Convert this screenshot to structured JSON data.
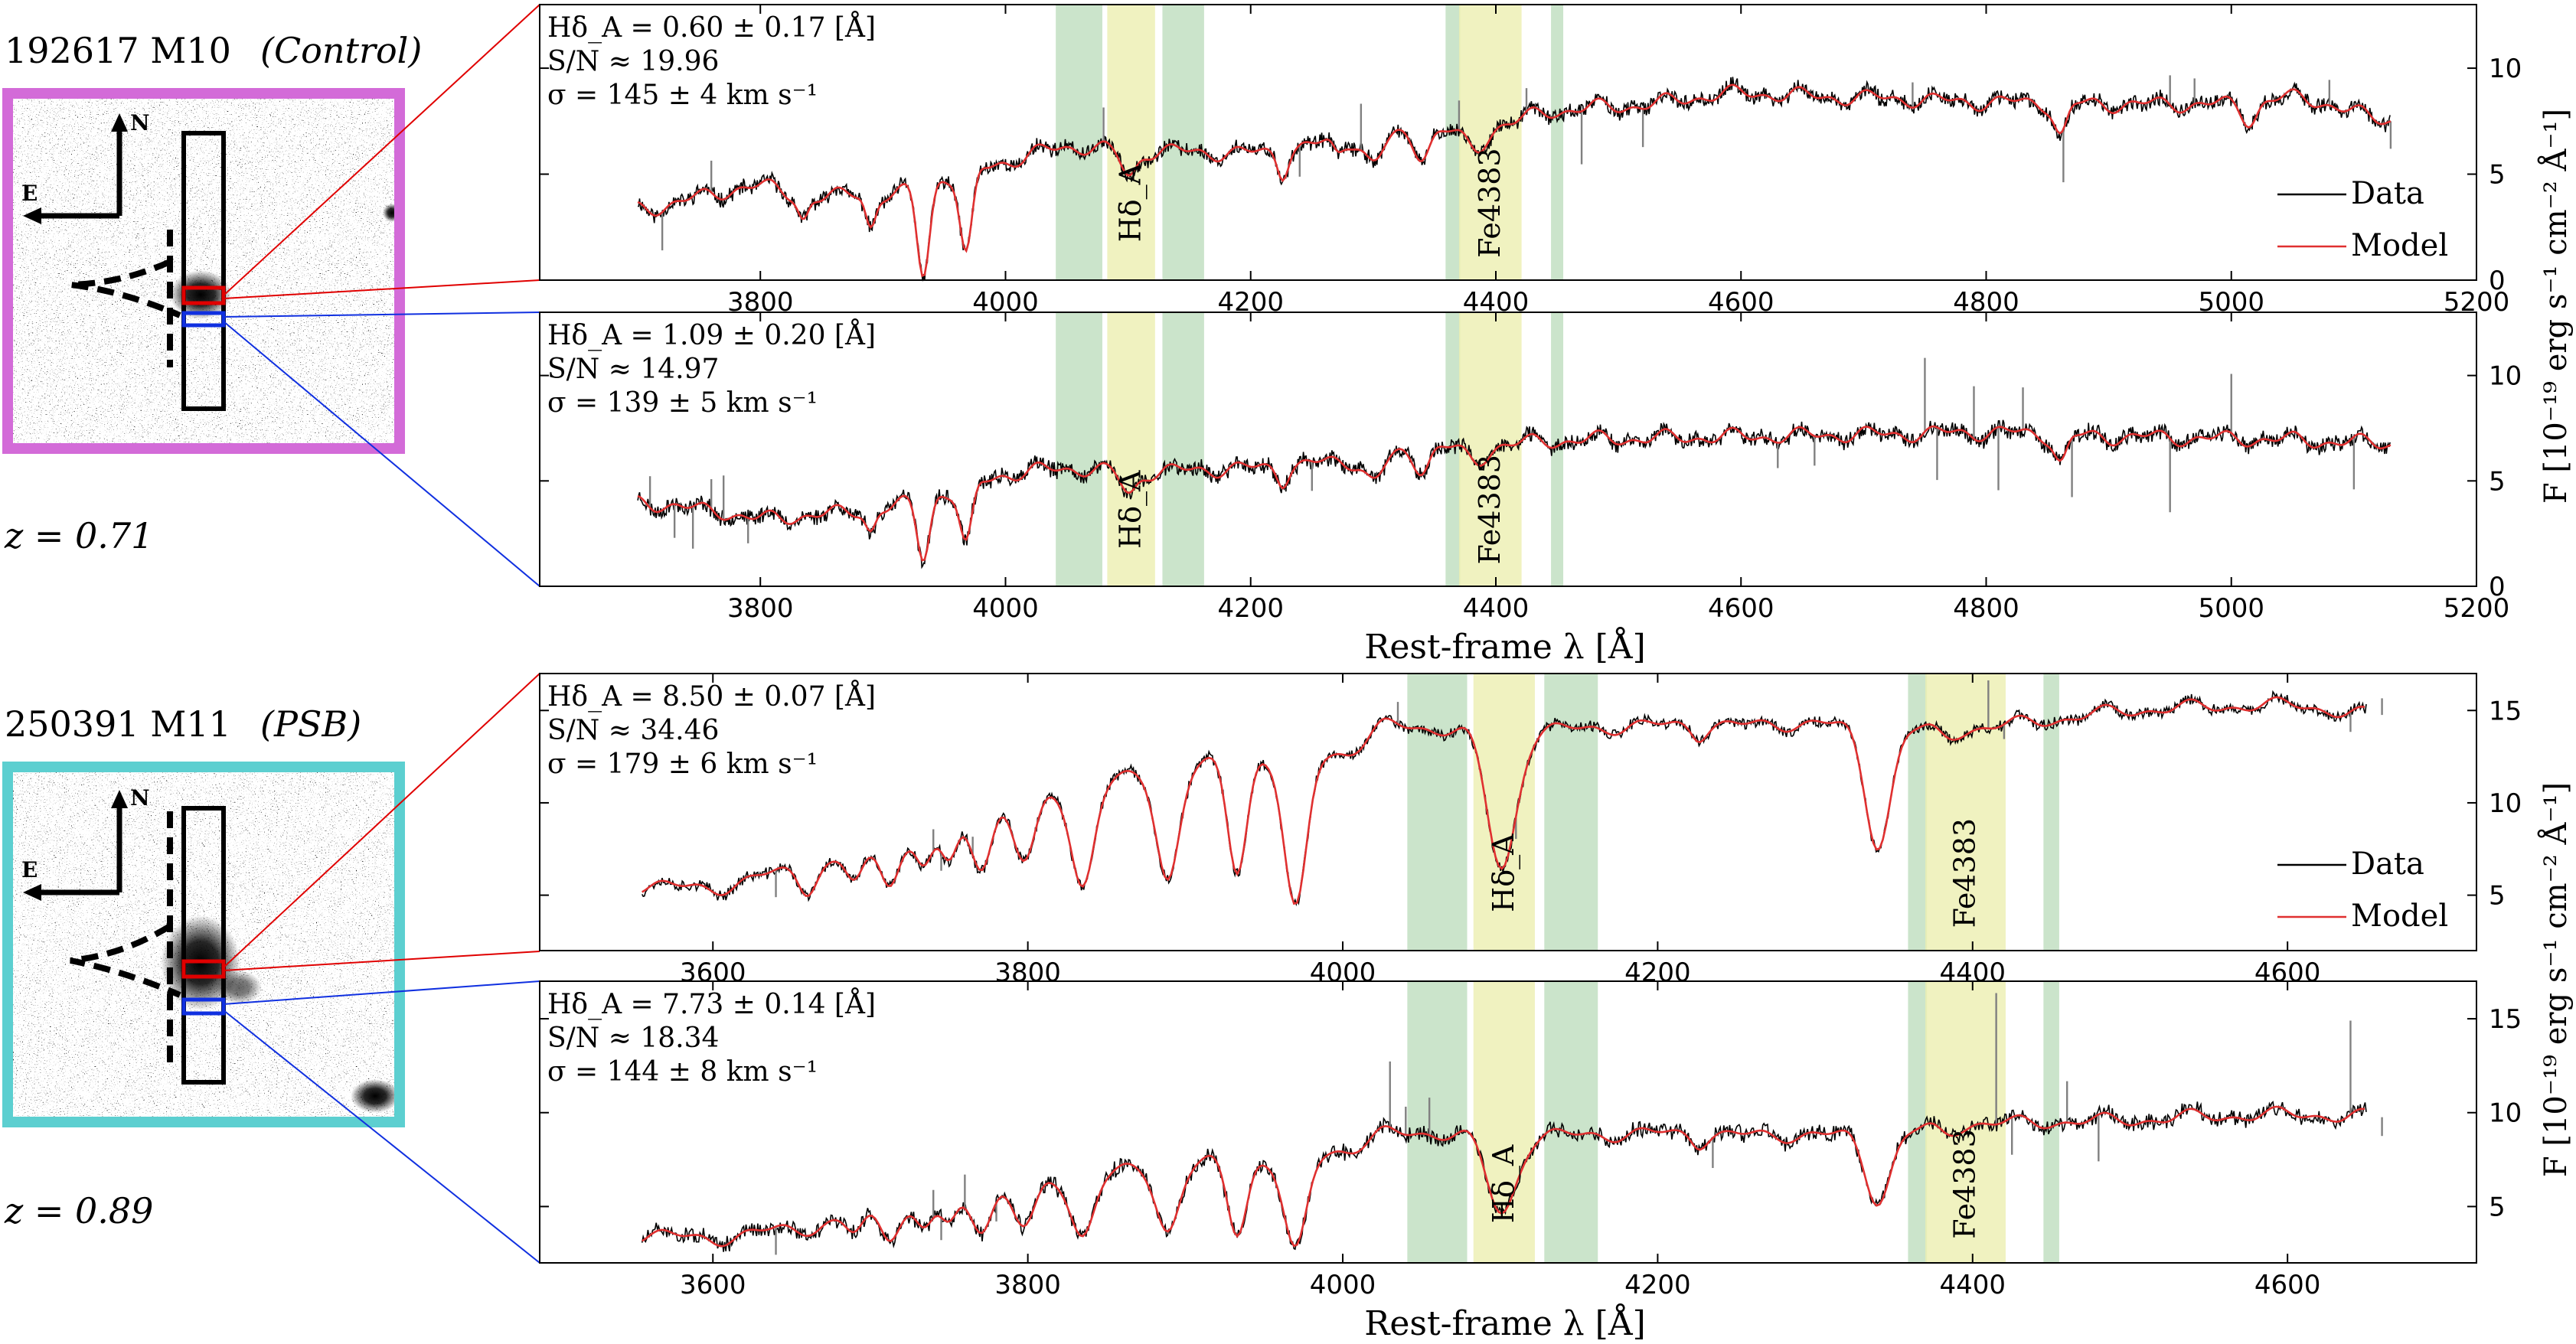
{
  "galaxies": [
    {
      "id": "192617 M10",
      "type_label": "(Control)",
      "redshift": "z = 0.71",
      "frame_color": "#d36bd8",
      "compass": {
        "north": "N",
        "east": "E"
      },
      "panels": [
        {
          "stats": [
            "Hδ_A = 0.60 ± 0.17 [Å]",
            "S/N ≈ 19.96",
            "σ = 145 ± 4 km s⁻¹"
          ],
          "box_color": "#e00000",
          "show_legend": true,
          "show_xlabel": false
        },
        {
          "stats": [
            "Hδ_A = 1.09 ± 0.20 [Å]",
            "S/N ≈ 14.97",
            "σ = 139 ± 5 km s⁻¹"
          ],
          "box_color": "#1030e0",
          "show_legend": false,
          "show_xlabel": true
        }
      ]
    },
    {
      "id": "250391 M11",
      "type_label": "(PSB)",
      "redshift": "z = 0.89",
      "frame_color": "#5ccfd0",
      "compass": {
        "north": "N",
        "east": "E"
      },
      "panels": [
        {
          "stats": [
            "Hδ_A = 8.50 ± 0.07 [Å]",
            "S/N ≈ 34.46",
            "σ = 179 ± 6 km s⁻¹"
          ],
          "box_color": "#e00000",
          "show_legend": true,
          "show_xlabel": false
        },
        {
          "stats": [
            "Hδ_A = 7.73 ± 0.14 [Å]",
            "S/N ≈ 18.34",
            "σ = 144 ± 8 km s⁻¹"
          ],
          "box_color": "#1030e0",
          "show_legend": false,
          "show_xlabel": true
        }
      ]
    }
  ],
  "legend": {
    "data": "Data",
    "model": "Model"
  },
  "index_labels": {
    "hdelta": "Hδ_A",
    "fe": "Fe4383"
  },
  "axis_text": {
    "xlabel": "Rest-frame λ [Å]",
    "ylabel": "F [10⁻¹⁹ erg s⁻¹ cm⁻² Å⁻¹]"
  },
  "colors": {
    "data": "#000000",
    "data_masked": "#808080",
    "model": "#e03030",
    "sideband": "#a9d2a9",
    "central": "#ecefb0"
  },
  "chart_data": [
    {
      "type": "line",
      "galaxy": "192617 M10",
      "xlim": [
        3620,
        5200
      ],
      "ylim": [
        0,
        13
      ],
      "xticks": [
        3800,
        4000,
        4200,
        4400,
        4600,
        4800,
        5000,
        5200
      ],
      "yticks": [
        0,
        5,
        10
      ],
      "sidebands": [
        [
          4041,
          4079
        ],
        [
          4128,
          4162
        ],
        [
          4359,
          4371
        ],
        [
          4445,
          4455
        ]
      ],
      "central": [
        [
          4083,
          4122
        ],
        [
          4370,
          4421
        ]
      ],
      "model_nodes": [
        [
          3700,
          3.4
        ],
        [
          3800,
          4.4
        ],
        [
          3850,
          3.8
        ],
        [
          3880,
          4.2
        ],
        [
          3900,
          3.9
        ],
        [
          3950,
          4.8
        ],
        [
          4000,
          5.6
        ],
        [
          4050,
          6.3
        ],
        [
          4100,
          6.1
        ],
        [
          4200,
          6.0
        ],
        [
          4300,
          6.7
        ],
        [
          4350,
          7.0
        ],
        [
          4400,
          7.3
        ],
        [
          4450,
          8.0
        ],
        [
          4500,
          8.2
        ],
        [
          4600,
          8.8
        ],
        [
          4700,
          8.6
        ],
        [
          4800,
          8.4
        ],
        [
          4900,
          8.3
        ],
        [
          5000,
          8.3
        ],
        [
          5050,
          8.6
        ],
        [
          5130,
          7.6
        ]
      ],
      "absorption": [
        [
          3933,
          4.2,
          5
        ],
        [
          3968,
          4.0,
          5
        ],
        [
          4101,
          1.2,
          6
        ],
        [
          4226,
          1.0,
          4
        ],
        [
          4300,
          1.2,
          7
        ],
        [
          4340,
          1.0,
          6
        ],
        [
          4383,
          1.1,
          8
        ],
        [
          4861,
          1.5,
          5
        ],
        [
          3890,
          1.5,
          4
        ],
        [
          3835,
          1.0,
          4
        ],
        [
          4271,
          0.6,
          4
        ],
        [
          5015,
          0.8,
          6
        ]
      ],
      "noise": 0.32,
      "seed": 11,
      "masked_spikes": [
        [
          3720,
          -1.8
        ],
        [
          3760,
          1.5
        ],
        [
          4080,
          1.6
        ],
        [
          4240,
          -1.5
        ],
        [
          4290,
          2.2
        ],
        [
          4370,
          1.4
        ],
        [
          4425,
          1.1
        ],
        [
          4470,
          -2.5
        ],
        [
          4520,
          -1.8
        ],
        [
          4740,
          1.2
        ],
        [
          4863,
          -2.5
        ],
        [
          4950,
          1.4
        ],
        [
          4970,
          1.2
        ],
        [
          5080,
          1.2
        ],
        [
          5130,
          -1.3
        ]
      ]
    },
    {
      "type": "line",
      "galaxy": "192617 M10",
      "xlim": [
        3620,
        5200
      ],
      "ylim": [
        0,
        13
      ],
      "xticks": [
        3800,
        4000,
        4200,
        4400,
        4600,
        4800,
        5000,
        5200
      ],
      "yticks": [
        0,
        5,
        10
      ],
      "sidebands": [
        [
          4041,
          4079
        ],
        [
          4128,
          4162
        ],
        [
          4359,
          4371
        ],
        [
          4445,
          4455
        ]
      ],
      "central": [
        [
          4083,
          4122
        ],
        [
          4370,
          4421
        ]
      ],
      "model_nodes": [
        [
          3700,
          4.0
        ],
        [
          3760,
          3.6
        ],
        [
          3800,
          3.2
        ],
        [
          3850,
          3.4
        ],
        [
          3900,
          3.7
        ],
        [
          3950,
          4.4
        ],
        [
          4000,
          5.3
        ],
        [
          4050,
          5.6
        ],
        [
          4100,
          5.4
        ],
        [
          4200,
          5.6
        ],
        [
          4300,
          6.0
        ],
        [
          4350,
          6.6
        ],
        [
          4400,
          6.7
        ],
        [
          4450,
          6.9
        ],
        [
          4500,
          7.0
        ],
        [
          4600,
          7.1
        ],
        [
          4700,
          7.2
        ],
        [
          4800,
          7.3
        ],
        [
          4900,
          7.1
        ],
        [
          5000,
          7.0
        ],
        [
          5130,
          6.8
        ]
      ],
      "absorption": [
        [
          3933,
          2.8,
          5
        ],
        [
          3968,
          2.8,
          5
        ],
        [
          4101,
          1.0,
          6
        ],
        [
          4226,
          0.6,
          4
        ],
        [
          4300,
          1.0,
          7
        ],
        [
          4340,
          0.9,
          6
        ],
        [
          4383,
          0.8,
          8
        ],
        [
          4861,
          1.3,
          5
        ],
        [
          3890,
          1.0,
          4
        ]
      ],
      "noise": 0.35,
      "seed": 23,
      "masked_spikes": [
        [
          3710,
          1.5
        ],
        [
          3730,
          -1.6
        ],
        [
          3745,
          -2.0
        ],
        [
          3760,
          1.4
        ],
        [
          3770,
          2.1
        ],
        [
          3790,
          -1.2
        ],
        [
          4250,
          -1.4
        ],
        [
          4630,
          -1.2
        ],
        [
          4660,
          -1.4
        ],
        [
          4750,
          3.5
        ],
        [
          4760,
          -2.5
        ],
        [
          4790,
          2.5
        ],
        [
          4810,
          -3.0
        ],
        [
          4830,
          2.0
        ],
        [
          4870,
          -2.8
        ],
        [
          4950,
          -3.5
        ],
        [
          5000,
          2.8
        ],
        [
          5100,
          -2.5
        ]
      ]
    },
    {
      "type": "line",
      "galaxy": "250391 M11",
      "xlim": [
        3490,
        4720
      ],
      "ylim": [
        2,
        17
      ],
      "xticks": [
        3600,
        3800,
        4000,
        4200,
        4400,
        4600
      ],
      "yticks": [
        5,
        10,
        15
      ],
      "sidebands": [
        [
          4041,
          4079
        ],
        [
          4128,
          4162
        ],
        [
          4359,
          4371
        ],
        [
          4445,
          4455
        ]
      ],
      "central": [
        [
          4083,
          4122
        ],
        [
          4370,
          4421
        ]
      ],
      "model_nodes": [
        [
          3555,
          5.5
        ],
        [
          3600,
          5.4
        ],
        [
          3650,
          6.3
        ],
        [
          3700,
          7.0
        ],
        [
          3750,
          8.6
        ],
        [
          3800,
          10.3
        ],
        [
          3850,
          11.2
        ],
        [
          3900,
          12.0
        ],
        [
          3950,
          12.5
        ],
        [
          4000,
          12.7
        ],
        [
          4030,
          14.2
        ],
        [
          4060,
          14.0
        ],
        [
          4100,
          13.9
        ],
        [
          4150,
          14.0
        ],
        [
          4200,
          14.2
        ],
        [
          4250,
          14.2
        ],
        [
          4300,
          14.3
        ],
        [
          4340,
          14.0
        ],
        [
          4400,
          14.0
        ],
        [
          4450,
          14.5
        ],
        [
          4500,
          15.0
        ],
        [
          4550,
          15.2
        ],
        [
          4600,
          15.3
        ],
        [
          4650,
          14.8
        ]
      ],
      "absorption": [
        [
          3660,
          1.0,
          5
        ],
        [
          3690,
          1.2,
          5
        ],
        [
          3712,
          1.4,
          5
        ],
        [
          3734,
          1.7,
          5
        ],
        [
          3750,
          2.0,
          5
        ],
        [
          3771,
          2.5,
          6
        ],
        [
          3798,
          3.5,
          7
        ],
        [
          3835,
          5.5,
          7
        ],
        [
          3889,
          6.0,
          7
        ],
        [
          3933,
          6.0,
          6
        ],
        [
          3970,
          8.5,
          7
        ],
        [
          4101,
          7.5,
          9
        ],
        [
          4340,
          6.2,
          8
        ],
        [
          4226,
          0.5,
          4
        ],
        [
          4383,
          0.4,
          6
        ]
      ],
      "noise": 0.28,
      "seed": 37,
      "masked_spikes": [
        [
          3640,
          -1.5
        ],
        [
          3740,
          1.2
        ],
        [
          3745,
          -1.0
        ],
        [
          3765,
          1.0
        ],
        [
          4035,
          1.2
        ],
        [
          4110,
          -1.2
        ],
        [
          4410,
          2.6
        ],
        [
          4420,
          -0.8
        ],
        [
          4640,
          -1.1
        ],
        [
          4660,
          0.9
        ]
      ]
    },
    {
      "type": "line",
      "galaxy": "250391 M11",
      "xlim": [
        3490,
        4720
      ],
      "ylim": [
        2,
        17
      ],
      "xticks": [
        3600,
        3800,
        4000,
        4200,
        4400,
        4600
      ],
      "yticks": [
        5,
        10,
        15
      ],
      "sidebands": [
        [
          4041,
          4079
        ],
        [
          4128,
          4162
        ],
        [
          4359,
          4371
        ],
        [
          4445,
          4455
        ]
      ],
      "central": [
        [
          4083,
          4122
        ],
        [
          4370,
          4421
        ]
      ],
      "model_nodes": [
        [
          3555,
          3.5
        ],
        [
          3600,
          3.3
        ],
        [
          3650,
          3.8
        ],
        [
          3700,
          4.4
        ],
        [
          3750,
          5.2
        ],
        [
          3800,
          6.2
        ],
        [
          3850,
          6.8
        ],
        [
          3900,
          7.3
        ],
        [
          3950,
          7.5
        ],
        [
          4000,
          8.0
        ],
        [
          4030,
          8.9
        ],
        [
          4060,
          8.9
        ],
        [
          4100,
          8.8
        ],
        [
          4150,
          8.8
        ],
        [
          4200,
          8.9
        ],
        [
          4250,
          8.8
        ],
        [
          4300,
          8.8
        ],
        [
          4340,
          8.9
        ],
        [
          4400,
          9.4
        ],
        [
          4450,
          9.5
        ],
        [
          4500,
          9.6
        ],
        [
          4550,
          9.8
        ],
        [
          4600,
          9.9
        ],
        [
          4650,
          9.8
        ]
      ],
      "absorption": [
        [
          3690,
          0.8,
          5
        ],
        [
          3712,
          1.0,
          5
        ],
        [
          3734,
          1.2,
          5
        ],
        [
          3750,
          1.3,
          5
        ],
        [
          3771,
          1.6,
          6
        ],
        [
          3798,
          2.3,
          7
        ],
        [
          3835,
          3.2,
          7
        ],
        [
          3889,
          3.5,
          7
        ],
        [
          3933,
          3.8,
          6
        ],
        [
          3970,
          5.2,
          7
        ],
        [
          4101,
          4.2,
          9
        ],
        [
          4340,
          3.5,
          8
        ],
        [
          4226,
          0.4,
          4
        ],
        [
          4383,
          0.4,
          6
        ]
      ],
      "noise": 0.38,
      "seed": 51,
      "masked_spikes": [
        [
          3640,
          -1.5
        ],
        [
          3740,
          1.5
        ],
        [
          3745,
          -1.2
        ],
        [
          3760,
          1.8
        ],
        [
          3780,
          -1.0
        ],
        [
          4030,
          3.5
        ],
        [
          4040,
          1.5
        ],
        [
          4055,
          2.0
        ],
        [
          4235,
          -1.6
        ],
        [
          4415,
          7.0
        ],
        [
          4425,
          -2.0
        ],
        [
          4460,
          2.2
        ],
        [
          4480,
          -2.5
        ],
        [
          4640,
          5.0
        ],
        [
          4660,
          -1.0
        ]
      ]
    }
  ]
}
